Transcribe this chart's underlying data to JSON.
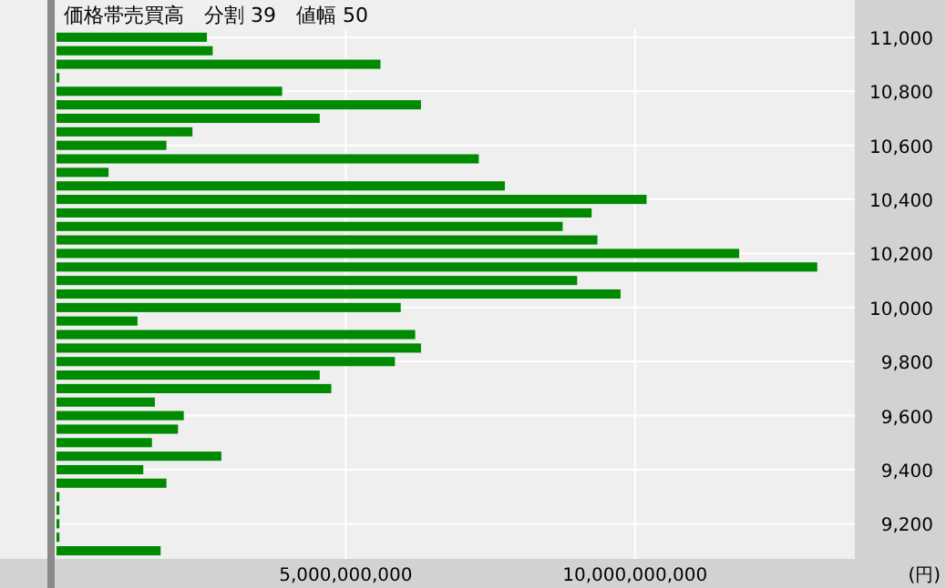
{
  "chart_data": {
    "type": "bar",
    "orientation": "horizontal",
    "title": "価格帯売買高　分割 39　値幅 50",
    "xlabel": "(円)",
    "color": "#008a00",
    "x": [
      11000,
      10950,
      10900,
      10850,
      10800,
      10750,
      10700,
      10650,
      10600,
      10550,
      10500,
      10450,
      10400,
      10350,
      10300,
      10250,
      10200,
      10150,
      10100,
      10050,
      10000,
      9950,
      9900,
      9850,
      9800,
      9750,
      9700,
      9650,
      9600,
      9550,
      9500,
      9450,
      9400,
      9350,
      9300,
      9250,
      9200,
      9150,
      9100
    ],
    "values": [
      2600000000,
      2700000000,
      5600000000,
      50000000,
      3900000000,
      6300000000,
      4550000000,
      2350000000,
      1900000000,
      7300000000,
      900000000,
      7750000000,
      10200000000,
      9250000000,
      8750000000,
      9350000000,
      11800000000,
      13150000000,
      9000000000,
      9750000000,
      5950000000,
      1400000000,
      6200000000,
      6300000000,
      5850000000,
      4550000000,
      4750000000,
      1700000000,
      2200000000,
      2100000000,
      1650000000,
      2850000000,
      1500000000,
      1900000000,
      50000000,
      50000000,
      50000000,
      50000000,
      1800000000
    ],
    "xlim": [
      0,
      13800000000
    ],
    "xticks": [
      {
        "value": 5000000000,
        "label": "5,000,000,000"
      },
      {
        "value": 10000000000,
        "label": "10,000,000,000"
      }
    ],
    "ylim": [
      9070,
      11030
    ],
    "yticks": [
      {
        "value": 9200,
        "label": "9,200"
      },
      {
        "value": 9400,
        "label": "9,400"
      },
      {
        "value": 9600,
        "label": "9,600"
      },
      {
        "value": 9800,
        "label": "9,800"
      },
      {
        "value": 10000,
        "label": "10,000"
      },
      {
        "value": 10200,
        "label": "10,200"
      },
      {
        "value": 10400,
        "label": "10,400"
      },
      {
        "value": 10600,
        "label": "10,600"
      },
      {
        "value": 10800,
        "label": "10,800"
      },
      {
        "value": 11000,
        "label": "11,000"
      }
    ],
    "grid": true
  }
}
